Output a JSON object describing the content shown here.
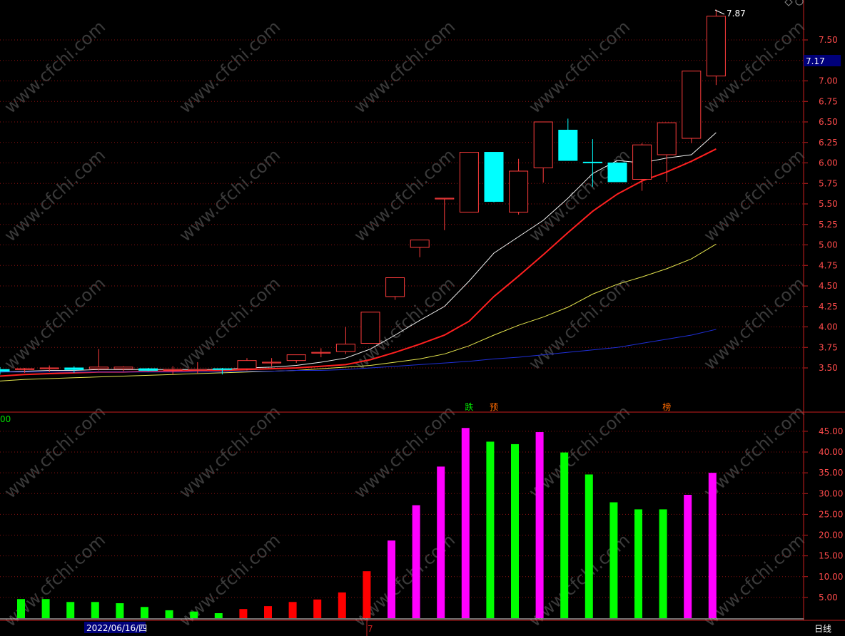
{
  "chart_data": [
    {
      "type": "candlestick",
      "ylim": [
        3.25,
        7.95
      ],
      "y_ticks": [
        "3.50",
        "3.75",
        "4.00",
        "4.25",
        "4.50",
        "4.75",
        "5.00",
        "5.25",
        "5.50",
        "5.75",
        "6.00",
        "6.25",
        "6.50",
        "6.75",
        "7.00",
        "7.25",
        "7.50"
      ],
      "price_tag": "7.17",
      "high_label": "7.87",
      "candles": [
        {
          "o": 3.46,
          "c": 3.48,
          "h": 3.51,
          "l": 3.42,
          "color": "cyan"
        },
        {
          "o": 3.48,
          "c": 3.49,
          "h": 3.5,
          "l": 3.44,
          "color": "red"
        },
        {
          "o": 3.49,
          "c": 3.5,
          "h": 3.53,
          "l": 3.45,
          "color": "red"
        },
        {
          "o": 3.5,
          "c": 3.48,
          "h": 3.52,
          "l": 3.44,
          "color": "cyan"
        },
        {
          "o": 3.49,
          "c": 3.51,
          "h": 3.73,
          "l": 3.47,
          "color": "red"
        },
        {
          "o": 3.51,
          "c": 3.49,
          "h": 3.52,
          "l": 3.46,
          "color": "red"
        },
        {
          "o": 3.49,
          "c": 3.47,
          "h": 3.5,
          "l": 3.46,
          "color": "cyan"
        },
        {
          "o": 3.47,
          "c": 3.48,
          "h": 3.52,
          "l": 3.42,
          "color": "red"
        },
        {
          "o": 3.48,
          "c": 3.47,
          "h": 3.57,
          "l": 3.43,
          "color": "red"
        },
        {
          "o": 3.48,
          "c": 3.49,
          "h": 3.5,
          "l": 3.42,
          "color": "cyan"
        },
        {
          "o": 3.49,
          "c": 3.59,
          "h": 3.62,
          "l": 3.47,
          "color": "red"
        },
        {
          "o": 3.56,
          "c": 3.57,
          "h": 3.62,
          "l": 3.52,
          "color": "red"
        },
        {
          "o": 3.59,
          "c": 3.66,
          "h": 3.66,
          "l": 3.56,
          "color": "red"
        },
        {
          "o": 3.68,
          "c": 3.69,
          "h": 3.74,
          "l": 3.63,
          "color": "red"
        },
        {
          "o": 3.7,
          "c": 3.79,
          "h": 4.0,
          "l": 3.67,
          "color": "red"
        },
        {
          "o": 3.8,
          "c": 4.18,
          "h": 4.18,
          "l": 3.8,
          "color": "red"
        },
        {
          "o": 4.37,
          "c": 4.6,
          "h": 4.6,
          "l": 4.33,
          "color": "red"
        },
        {
          "o": 4.97,
          "c": 5.06,
          "h": 5.06,
          "l": 4.85,
          "color": "red"
        },
        {
          "o": 5.56,
          "c": 5.57,
          "h": 5.57,
          "l": 5.18,
          "color": "red"
        },
        {
          "o": 5.4,
          "c": 6.13,
          "h": 6.13,
          "l": 5.4,
          "color": "red"
        },
        {
          "o": 6.13,
          "c": 5.53,
          "h": 6.13,
          "l": 5.52,
          "color": "cyan"
        },
        {
          "o": 5.4,
          "c": 5.9,
          "h": 6.05,
          "l": 5.37,
          "color": "red"
        },
        {
          "o": 5.94,
          "c": 6.5,
          "h": 6.5,
          "l": 5.76,
          "color": "red"
        },
        {
          "o": 6.4,
          "c": 6.03,
          "h": 6.54,
          "l": 6.03,
          "color": "cyan"
        },
        {
          "o": 6.01,
          "c": 6.01,
          "h": 6.29,
          "l": 5.71,
          "color": "cyan"
        },
        {
          "o": 6.0,
          "c": 5.77,
          "h": 6.0,
          "l": 5.77,
          "color": "cyan"
        },
        {
          "o": 5.8,
          "c": 6.22,
          "h": 6.24,
          "l": 5.66,
          "color": "red"
        },
        {
          "o": 6.1,
          "c": 6.49,
          "h": 6.49,
          "l": 5.77,
          "color": "red"
        },
        {
          "o": 6.3,
          "c": 7.12,
          "h": 7.12,
          "l": 6.24,
          "color": "red"
        },
        {
          "o": 7.06,
          "c": 7.79,
          "h": 7.87,
          "l": 6.95,
          "color": "red"
        }
      ],
      "series": [
        {
          "color": "#f0f0f0",
          "values": [
            3.45,
            3.46,
            3.47,
            3.47,
            3.48,
            3.48,
            3.48,
            3.48,
            3.48,
            3.48,
            3.5,
            3.51,
            3.53,
            3.57,
            3.62,
            3.73,
            3.9,
            4.08,
            4.25,
            4.56,
            4.9,
            5.1,
            5.3,
            5.57,
            5.87,
            6.03,
            6.0,
            6.06,
            6.1,
            6.37
          ],
          "start": 0
        },
        {
          "color": "#ff2020",
          "values": [
            3.4,
            3.42,
            3.43,
            3.44,
            3.45,
            3.45,
            3.46,
            3.46,
            3.47,
            3.47,
            3.48,
            3.49,
            3.5,
            3.52,
            3.54,
            3.6,
            3.69,
            3.79,
            3.9,
            4.07,
            4.37,
            4.62,
            4.88,
            5.15,
            5.41,
            5.62,
            5.78,
            5.89,
            6.02,
            6.17
          ],
          "start": 0
        },
        {
          "color": "#e6e64e",
          "values": [
            3.34,
            3.36,
            3.37,
            3.38,
            3.39,
            3.4,
            3.41,
            3.42,
            3.43,
            3.44,
            3.45,
            3.46,
            3.47,
            3.49,
            3.51,
            3.53,
            3.57,
            3.61,
            3.67,
            3.77,
            3.9,
            4.02,
            4.12,
            4.24,
            4.4,
            4.52,
            4.61,
            4.71,
            4.83,
            5.01
          ],
          "start": 0
        },
        {
          "color": "#1f2fd8",
          "values": [
            3.45,
            3.45,
            3.45,
            3.45,
            3.45,
            3.45,
            3.45,
            3.45,
            3.45,
            3.45,
            3.46,
            3.46,
            3.47,
            3.47,
            3.48,
            3.5,
            3.52,
            3.54,
            3.56,
            3.58,
            3.61,
            3.63,
            3.66,
            3.69,
            3.72,
            3.75,
            3.8,
            3.85,
            3.9,
            3.97
          ],
          "start": 0
        }
      ],
      "markers": [
        {
          "i": 19,
          "text": "跌",
          "color": "#00e000"
        },
        {
          "i": 20,
          "text": "预",
          "color": "#ff6a00"
        },
        {
          "i": 27,
          "text": "榜",
          "color": "#ff6a00"
        }
      ]
    },
    {
      "type": "bar",
      "ylim": [
        0,
        48
      ],
      "y_ticks": [
        "5.00",
        "10.00",
        "15.00",
        "20.00",
        "25.00",
        "30.00",
        "35.00",
        "40.00",
        "45.00"
      ],
      "corner_label": "00",
      "values": [
        4.6,
        4.6,
        3.9,
        3.9,
        3.6,
        2.7,
        1.9,
        1.6,
        1.2,
        2.2,
        2.9,
        3.9,
        4.5,
        6.2,
        11.3,
        18.7,
        27.2,
        36.5,
        45.8,
        42.5,
        41.9,
        44.8,
        39.9,
        34.6,
        27.9,
        26.2,
        26.2,
        29.7,
        35.0
      ],
      "colors": [
        "green",
        "green",
        "green",
        "green",
        "green",
        "green",
        "green",
        "green",
        "green",
        "red",
        "red",
        "red",
        "red",
        "red",
        "red",
        "magenta",
        "magenta",
        "magenta",
        "magenta",
        "green",
        "green",
        "magenta",
        "green",
        "green",
        "green",
        "green",
        "green",
        "magenta",
        "magenta"
      ]
    }
  ],
  "footer": {
    "date": "2022/06/16/四",
    "cursor_text": "7",
    "period": "日线"
  },
  "watermark": "www.cfchi.com"
}
